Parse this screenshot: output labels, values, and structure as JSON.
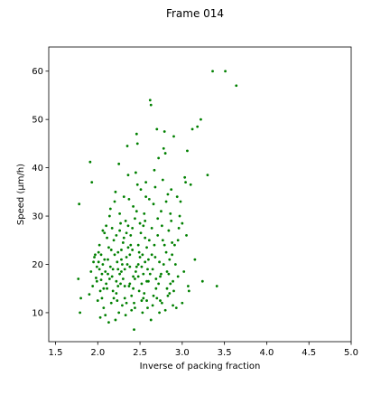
{
  "chart_data": {
    "type": "scatter",
    "title": "Frame 014",
    "xlabel": "Inverse of packing fraction",
    "ylabel": "Speed (μm/h)",
    "xlim": [
      1.42,
      5.0
    ],
    "ylim": [
      4.0,
      65.0
    ],
    "xticks": [
      1.5,
      2.0,
      2.5,
      3.0,
      3.5,
      4.0,
      4.5,
      5.0
    ],
    "xtick_labels": [
      "1.5",
      "2.0",
      "2.5",
      "3.0",
      "3.5",
      "4.0",
      "4.5",
      "5.0"
    ],
    "yticks": [
      10,
      20,
      30,
      40,
      50,
      60
    ],
    "ytick_labels": [
      "10",
      "20",
      "30",
      "40",
      "50",
      "60"
    ],
    "grid": false,
    "marker_color": "#008000",
    "points": [
      [
        1.78,
        32.5
      ],
      [
        1.79,
        10.0
      ],
      [
        1.8,
        13.0
      ],
      [
        1.77,
        17.0
      ],
      [
        1.91,
        41.2
      ],
      [
        1.93,
        37.0
      ],
      [
        1.9,
        13.8
      ],
      [
        1.92,
        18.5
      ],
      [
        1.95,
        20.5
      ],
      [
        1.96,
        21.5
      ],
      [
        1.97,
        22.0
      ],
      [
        1.94,
        15.5
      ],
      [
        1.98,
        17.2
      ],
      [
        1.99,
        19.5
      ],
      [
        2.0,
        12.5
      ],
      [
        2.01,
        22.5
      ],
      [
        2.02,
        24.0
      ],
      [
        2.03,
        14.5
      ],
      [
        2.04,
        16.8
      ],
      [
        2.05,
        18.0
      ],
      [
        2.06,
        20.0
      ],
      [
        2.07,
        11.0
      ],
      [
        2.08,
        26.5
      ],
      [
        2.09,
        9.5
      ],
      [
        2.1,
        28.0
      ],
      [
        2.11,
        15.0
      ],
      [
        2.12,
        21.0
      ],
      [
        2.13,
        23.5
      ],
      [
        2.14,
        30.0
      ],
      [
        2.15,
        31.5
      ],
      [
        2.16,
        12.0
      ],
      [
        2.17,
        17.5
      ],
      [
        2.18,
        19.0
      ],
      [
        2.19,
        25.0
      ],
      [
        2.2,
        33.0
      ],
      [
        2.21,
        8.5
      ],
      [
        2.22,
        14.0
      ],
      [
        2.23,
        20.5
      ],
      [
        2.24,
        22.5
      ],
      [
        2.25,
        40.8
      ],
      [
        2.26,
        27.0
      ],
      [
        2.27,
        16.0
      ],
      [
        2.28,
        18.5
      ],
      [
        2.29,
        11.5
      ],
      [
        2.3,
        24.5
      ],
      [
        2.31,
        34.0
      ],
      [
        2.32,
        13.0
      ],
      [
        2.33,
        29.0
      ],
      [
        2.34,
        21.5
      ],
      [
        2.35,
        44.5
      ],
      [
        2.36,
        38.5
      ],
      [
        2.37,
        15.5
      ],
      [
        2.38,
        19.5
      ],
      [
        2.39,
        26.0
      ],
      [
        2.4,
        10.5
      ],
      [
        2.41,
        23.0
      ],
      [
        2.42,
        32.0
      ],
      [
        2.43,
        6.5
      ],
      [
        2.44,
        17.0
      ],
      [
        2.45,
        39.0
      ],
      [
        2.46,
        47.0
      ],
      [
        2.47,
        45.0
      ],
      [
        2.48,
        20.0
      ],
      [
        2.49,
        14.5
      ],
      [
        2.5,
        28.5
      ],
      [
        2.51,
        35.5
      ],
      [
        2.52,
        12.5
      ],
      [
        2.53,
        22.0
      ],
      [
        2.54,
        18.0
      ],
      [
        2.55,
        30.5
      ],
      [
        2.56,
        25.5
      ],
      [
        2.57,
        37.0
      ],
      [
        2.58,
        16.5
      ],
      [
        2.59,
        11.0
      ],
      [
        2.6,
        21.0
      ],
      [
        2.61,
        33.5
      ],
      [
        2.62,
        54.0
      ],
      [
        2.63,
        53.0
      ],
      [
        2.64,
        27.5
      ],
      [
        2.65,
        19.0
      ],
      [
        2.66,
        13.5
      ],
      [
        2.67,
        24.0
      ],
      [
        2.68,
        36.0
      ],
      [
        2.69,
        15.0
      ],
      [
        2.7,
        48.0
      ],
      [
        2.71,
        29.5
      ],
      [
        2.72,
        42.0
      ],
      [
        2.73,
        20.5
      ],
      [
        2.74,
        17.5
      ],
      [
        2.75,
        31.0
      ],
      [
        2.76,
        12.0
      ],
      [
        2.77,
        25.0
      ],
      [
        2.78,
        44.0
      ],
      [
        2.79,
        47.5
      ],
      [
        2.8,
        43.0
      ],
      [
        2.81,
        22.5
      ],
      [
        2.82,
        18.5
      ],
      [
        2.83,
        34.5
      ],
      [
        2.84,
        27.0
      ],
      [
        2.85,
        14.0
      ],
      [
        2.86,
        16.0
      ],
      [
        2.87,
        29.0
      ],
      [
        2.88,
        24.5
      ],
      [
        2.89,
        11.5
      ],
      [
        2.9,
        46.5
      ],
      [
        2.92,
        20.0
      ],
      [
        2.94,
        34.0
      ],
      [
        2.95,
        25.0
      ],
      [
        2.97,
        30.0
      ],
      [
        2.98,
        33.0
      ],
      [
        3.0,
        28.5
      ],
      [
        3.02,
        18.5
      ],
      [
        3.03,
        38.0
      ],
      [
        3.04,
        37.0
      ],
      [
        3.05,
        26.0
      ],
      [
        3.06,
        43.5
      ],
      [
        3.07,
        15.5
      ],
      [
        3.08,
        14.5
      ],
      [
        3.1,
        36.5
      ],
      [
        3.12,
        48.0
      ],
      [
        3.15,
        21.0
      ],
      [
        3.18,
        48.5
      ],
      [
        3.22,
        50.0
      ],
      [
        3.24,
        16.5
      ],
      [
        3.3,
        38.5
      ],
      [
        3.36,
        60.0
      ],
      [
        3.41,
        15.5
      ],
      [
        3.51,
        60.0
      ],
      [
        3.64,
        57.0
      ],
      [
        2.05,
        13.0
      ],
      [
        2.1,
        16.0
      ],
      [
        2.15,
        19.5
      ],
      [
        2.2,
        22.0
      ],
      [
        2.25,
        10.0
      ],
      [
        2.3,
        17.0
      ],
      [
        2.35,
        20.0
      ],
      [
        2.4,
        13.5
      ],
      [
        2.45,
        18.5
      ],
      [
        2.5,
        21.5
      ],
      [
        2.55,
        14.0
      ],
      [
        2.6,
        16.5
      ],
      [
        2.65,
        11.5
      ],
      [
        2.7,
        13.0
      ],
      [
        2.75,
        18.0
      ],
      [
        2.8,
        10.5
      ],
      [
        2.85,
        21.0
      ],
      [
        2.9,
        14.5
      ],
      [
        2.95,
        17.5
      ],
      [
        3.0,
        12.0
      ],
      [
        2.12,
        18.0
      ],
      [
        2.18,
        14.5
      ],
      [
        2.22,
        26.0
      ],
      [
        2.28,
        23.0
      ],
      [
        2.32,
        19.0
      ],
      [
        2.38,
        22.0
      ],
      [
        2.42,
        15.0
      ],
      [
        2.48,
        17.5
      ],
      [
        2.52,
        19.5
      ],
      [
        2.58,
        23.5
      ],
      [
        2.62,
        18.0
      ],
      [
        2.68,
        21.5
      ],
      [
        2.72,
        16.0
      ],
      [
        2.78,
        20.0
      ],
      [
        2.82,
        15.0
      ],
      [
        2.88,
        22.0
      ],
      [
        2.02,
        19.0
      ],
      [
        2.08,
        21.0
      ],
      [
        2.14,
        17.0
      ],
      [
        2.19,
        13.0
      ],
      [
        2.24,
        15.5
      ],
      [
        2.29,
        20.0
      ],
      [
        2.34,
        12.0
      ],
      [
        2.39,
        24.0
      ],
      [
        2.44,
        11.0
      ],
      [
        2.49,
        22.5
      ],
      [
        2.54,
        13.0
      ],
      [
        2.59,
        19.0
      ],
      [
        2.64,
        22.0
      ],
      [
        2.69,
        17.0
      ],
      [
        2.74,
        12.5
      ],
      [
        2.79,
        24.0
      ],
      [
        2.84,
        18.0
      ],
      [
        2.89,
        16.5
      ],
      [
        2.03,
        9.0
      ],
      [
        2.13,
        8.0
      ],
      [
        2.23,
        12.5
      ],
      [
        2.33,
        9.5
      ],
      [
        2.43,
        12.0
      ],
      [
        2.53,
        10.0
      ],
      [
        2.63,
        8.5
      ],
      [
        2.73,
        10.0
      ],
      [
        2.83,
        13.5
      ],
      [
        2.93,
        11.0
      ],
      [
        2.26,
        30.5
      ],
      [
        2.36,
        28.0
      ],
      [
        2.46,
        31.0
      ],
      [
        2.56,
        29.0
      ],
      [
        2.66,
        32.5
      ],
      [
        2.76,
        28.0
      ],
      [
        2.86,
        30.5
      ],
      [
        2.96,
        27.5
      ],
      [
        2.21,
        35.0
      ],
      [
        2.31,
        25.5
      ],
      [
        2.41,
        27.5
      ],
      [
        2.51,
        26.5
      ],
      [
        2.61,
        25.0
      ],
      [
        2.71,
        26.0
      ],
      [
        2.81,
        33.0
      ],
      [
        2.91,
        24.0
      ],
      [
        2.17,
        27.5
      ],
      [
        2.27,
        28.5
      ],
      [
        2.37,
        33.5
      ],
      [
        2.47,
        36.5
      ],
      [
        2.57,
        34.0
      ],
      [
        2.67,
        39.5
      ],
      [
        2.77,
        37.5
      ],
      [
        2.87,
        35.5
      ],
      [
        2.11,
        25.5
      ],
      [
        2.16,
        23.0
      ],
      [
        2.06,
        27.0
      ],
      [
        2.01,
        20.5
      ],
      [
        1.99,
        16.5
      ],
      [
        2.04,
        22.0
      ],
      [
        2.09,
        18.5
      ],
      [
        2.07,
        15.0
      ],
      [
        2.46,
        19.5
      ],
      [
        2.48,
        24.0
      ],
      [
        2.52,
        16.0
      ],
      [
        2.54,
        28.0
      ],
      [
        2.56,
        20.5
      ],
      [
        2.58,
        12.5
      ],
      [
        2.44,
        29.5
      ],
      [
        2.42,
        17.5
      ],
      [
        2.38,
        16.0
      ],
      [
        2.36,
        23.5
      ],
      [
        2.34,
        26.5
      ],
      [
        2.32,
        15.5
      ],
      [
        2.28,
        21.0
      ],
      [
        2.26,
        18.0
      ],
      [
        2.24,
        19.0
      ],
      [
        2.22,
        16.5
      ]
    ]
  }
}
